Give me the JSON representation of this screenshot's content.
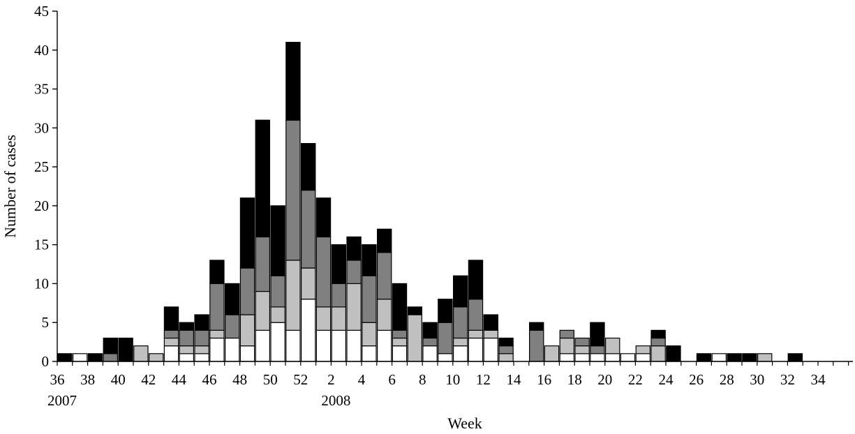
{
  "chart_data": {
    "type": "bar",
    "stacked": true,
    "title": "",
    "xlabel": "Week",
    "ylabel": "Number of cases",
    "ylim": [
      0,
      45
    ],
    "y_ticks": [
      0,
      5,
      10,
      15,
      20,
      25,
      30,
      35,
      40,
      45
    ],
    "grid": false,
    "legend": "none",
    "categories": [
      "37",
      "38",
      "39",
      "40",
      "41",
      "42",
      "43",
      "44",
      "45",
      "46",
      "47",
      "48",
      "49",
      "50",
      "51",
      "52",
      "53",
      "1",
      "2",
      "3",
      "4",
      "5",
      "6",
      "7",
      "8",
      "9",
      "10",
      "11",
      "12",
      "13",
      "14",
      "15",
      "16",
      "17",
      "18",
      "19",
      "20",
      "21",
      "22",
      "23",
      "24",
      "25",
      "26",
      "27",
      "28",
      "29",
      "30",
      "31",
      "32",
      "33",
      "34",
      "35"
    ],
    "x_tick_labels": [
      "36",
      "38",
      "40",
      "42",
      "44",
      "46",
      "48",
      "50",
      "52",
      "2",
      "4",
      "6",
      "8",
      "10",
      "12",
      "14",
      "16",
      "18",
      "20",
      "22",
      "24",
      "26",
      "28",
      "30",
      "32",
      "34"
    ],
    "year_labels": [
      {
        "text": "2007",
        "at_tick": "36"
      },
      {
        "text": "2008",
        "at_tick": "2"
      }
    ],
    "series": [
      {
        "color": "#ffffff",
        "values": [
          0,
          1,
          0,
          0,
          0,
          0,
          0,
          2,
          1,
          1,
          3,
          3,
          2,
          4,
          5,
          4,
          8,
          4,
          4,
          4,
          2,
          4,
          2,
          0,
          2,
          1,
          2,
          3,
          3,
          0,
          0,
          0,
          0,
          1,
          1,
          1,
          1,
          1,
          1,
          0,
          0,
          0,
          0,
          1,
          0,
          0,
          0,
          0,
          0,
          0,
          0,
          0
        ]
      },
      {
        "color": "#c0c0c0",
        "values": [
          0,
          0,
          0,
          0,
          0,
          2,
          1,
          1,
          1,
          1,
          1,
          0,
          4,
          5,
          2,
          9,
          4,
          3,
          3,
          6,
          3,
          4,
          1,
          6,
          0,
          0,
          1,
          1,
          1,
          1,
          0,
          0,
          2,
          2,
          1,
          0,
          2,
          0,
          1,
          2,
          0,
          0,
          0,
          0,
          0,
          0,
          1,
          0,
          0,
          0,
          0,
          0
        ]
      },
      {
        "color": "#808080",
        "values": [
          0,
          0,
          0,
          1,
          0,
          0,
          0,
          1,
          2,
          2,
          6,
          3,
          6,
          7,
          4,
          18,
          10,
          9,
          3,
          3,
          6,
          6,
          1,
          0,
          1,
          4,
          4,
          4,
          0,
          1,
          0,
          4,
          0,
          1,
          1,
          1,
          0,
          0,
          0,
          1,
          0,
          0,
          0,
          0,
          0,
          0,
          0,
          0,
          0,
          0,
          0,
          0
        ]
      },
      {
        "color": "#000000",
        "values": [
          1,
          0,
          1,
          2,
          3,
          0,
          0,
          3,
          1,
          2,
          3,
          4,
          9,
          15,
          9,
          10,
          6,
          5,
          5,
          3,
          4,
          3,
          6,
          1,
          2,
          3,
          4,
          5,
          2,
          1,
          0,
          1,
          0,
          0,
          0,
          3,
          0,
          0,
          0,
          1,
          2,
          0,
          1,
          0,
          1,
          1,
          0,
          0,
          1,
          0,
          0,
          0
        ]
      }
    ]
  }
}
